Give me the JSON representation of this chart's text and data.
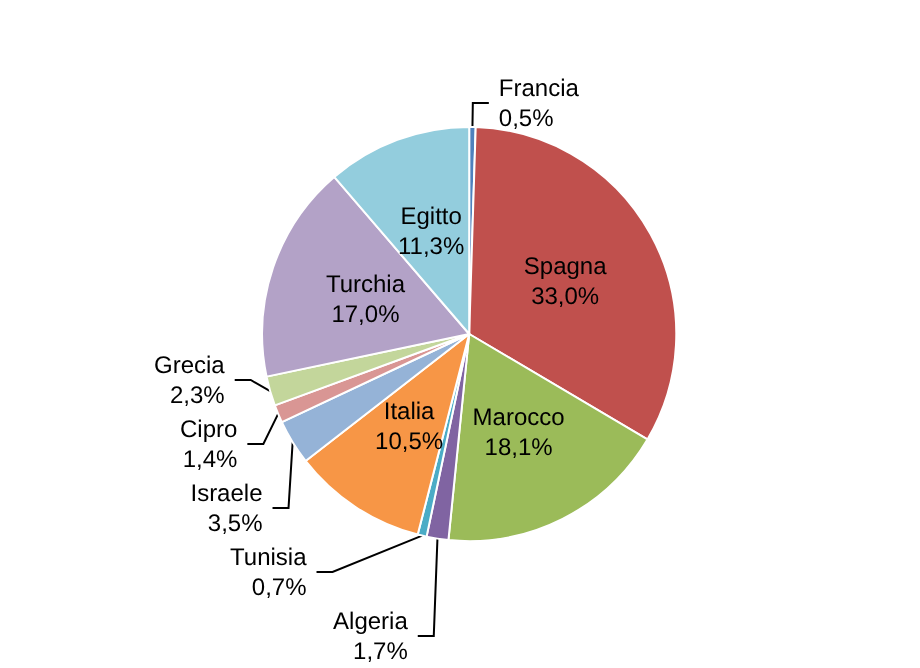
{
  "chart_data": {
    "type": "pie",
    "categories": [
      "Francia",
      "Spagna",
      "Marocco",
      "Algeria",
      "Tunisia",
      "Italia",
      "Israele",
      "Cipro",
      "Grecia",
      "Turchia",
      "Egitto"
    ],
    "values": [
      0.5,
      33.0,
      18.1,
      1.7,
      0.7,
      10.5,
      3.5,
      1.4,
      2.3,
      17.0,
      11.3
    ],
    "value_labels": [
      "0,5%",
      "33,0%",
      "18,1%",
      "1,7%",
      "0,7%",
      "10,5%",
      "3,5%",
      "1,4%",
      "2,3%",
      "17,0%",
      "11,3%"
    ],
    "colors": [
      "#4f81bd",
      "#c0504d",
      "#9bbb59",
      "#8064a2",
      "#4bacc6",
      "#f79646",
      "#95b3d7",
      "#d99694",
      "#c3d69b",
      "#b3a2c7",
      "#93cddd"
    ],
    "legend": false
  }
}
